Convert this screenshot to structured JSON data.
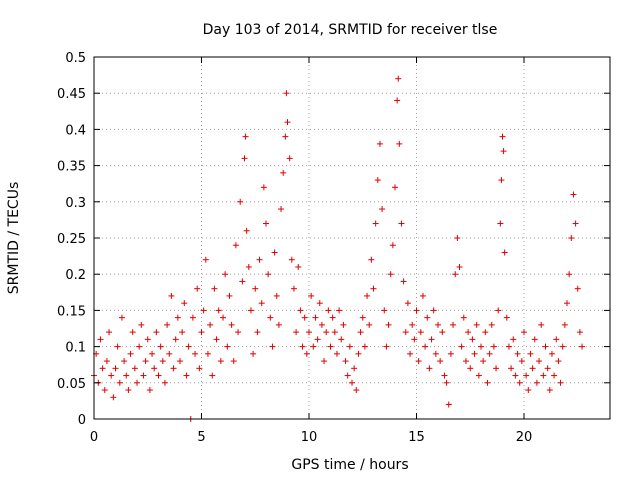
{
  "chart_data": {
    "type": "scatter",
    "title": "Day 103 of 2014, SRMTID for receiver tlse",
    "xlabel": "GPS time / hours",
    "ylabel": "SRMTID / TECUs",
    "xlim": [
      0,
      24
    ],
    "ylim": [
      0,
      0.5
    ],
    "x_ticks": [
      "0",
      "5",
      "10",
      "15",
      "20"
    ],
    "y_ticks": [
      "0",
      "0.05",
      "0.1",
      "0.15",
      "0.2",
      "0.25",
      "0.3",
      "0.35",
      "0.4",
      "0.45",
      "0.5"
    ],
    "grid": true,
    "marker": "+",
    "color": "#e00000",
    "series": [
      {
        "points": [
          [
            0.0,
            0.06
          ],
          [
            0.1,
            0.09
          ],
          [
            0.2,
            0.05
          ],
          [
            0.3,
            0.11
          ],
          [
            0.4,
            0.07
          ],
          [
            0.5,
            0.04
          ],
          [
            0.6,
            0.08
          ],
          [
            0.7,
            0.12
          ],
          [
            0.8,
            0.06
          ],
          [
            0.9,
            0.03
          ],
          [
            1.0,
            0.07
          ],
          [
            1.1,
            0.1
          ],
          [
            1.2,
            0.05
          ],
          [
            1.3,
            0.14
          ],
          [
            1.4,
            0.08
          ],
          [
            1.5,
            0.06
          ],
          [
            1.6,
            0.04
          ],
          [
            1.7,
            0.09
          ],
          [
            1.8,
            0.12
          ],
          [
            1.9,
            0.07
          ],
          [
            2.0,
            0.05
          ],
          [
            2.1,
            0.1
          ],
          [
            2.2,
            0.13
          ],
          [
            2.3,
            0.06
          ],
          [
            2.4,
            0.08
          ],
          [
            2.5,
            0.11
          ],
          [
            2.6,
            0.04
          ],
          [
            2.7,
            0.09
          ],
          [
            2.8,
            0.07
          ],
          [
            2.9,
            0.12
          ],
          [
            3.0,
            0.06
          ],
          [
            3.1,
            0.1
          ],
          [
            3.2,
            0.08
          ],
          [
            3.3,
            0.05
          ],
          [
            3.4,
            0.13
          ],
          [
            3.5,
            0.09
          ],
          [
            3.6,
            0.17
          ],
          [
            3.7,
            0.07
          ],
          [
            3.8,
            0.11
          ],
          [
            3.9,
            0.14
          ],
          [
            4.0,
            0.08
          ],
          [
            4.1,
            0.12
          ],
          [
            4.2,
            0.16
          ],
          [
            4.3,
            0.06
          ],
          [
            4.4,
            0.1
          ],
          [
            4.5,
            0.0
          ],
          [
            4.6,
            0.14
          ],
          [
            4.7,
            0.09
          ],
          [
            4.8,
            0.18
          ],
          [
            4.9,
            0.07
          ],
          [
            5.0,
            0.12
          ],
          [
            5.1,
            0.15
          ],
          [
            5.2,
            0.22
          ],
          [
            5.3,
            0.09
          ],
          [
            5.4,
            0.13
          ],
          [
            5.5,
            0.06
          ],
          [
            5.6,
            0.18
          ],
          [
            5.7,
            0.11
          ],
          [
            5.8,
            0.15
          ],
          [
            5.9,
            0.08
          ],
          [
            6.0,
            0.14
          ],
          [
            6.1,
            0.2
          ],
          [
            6.2,
            0.1
          ],
          [
            6.3,
            0.17
          ],
          [
            6.4,
            0.13
          ],
          [
            6.5,
            0.08
          ],
          [
            6.6,
            0.24
          ],
          [
            6.7,
            0.12
          ],
          [
            6.8,
            0.3
          ],
          [
            6.9,
            0.19
          ],
          [
            7.0,
            0.36
          ],
          [
            7.05,
            0.39
          ],
          [
            7.1,
            0.26
          ],
          [
            7.2,
            0.21
          ],
          [
            7.3,
            0.15
          ],
          [
            7.4,
            0.09
          ],
          [
            7.5,
            0.18
          ],
          [
            7.6,
            0.12
          ],
          [
            7.7,
            0.22
          ],
          [
            7.8,
            0.16
          ],
          [
            7.9,
            0.32
          ],
          [
            8.0,
            0.27
          ],
          [
            8.1,
            0.2
          ],
          [
            8.2,
            0.14
          ],
          [
            8.3,
            0.1
          ],
          [
            8.4,
            0.23
          ],
          [
            8.5,
            0.17
          ],
          [
            8.6,
            0.13
          ],
          [
            8.7,
            0.29
          ],
          [
            8.8,
            0.34
          ],
          [
            8.9,
            0.39
          ],
          [
            8.95,
            0.45
          ],
          [
            9.0,
            0.41
          ],
          [
            9.1,
            0.36
          ],
          [
            9.2,
            0.22
          ],
          [
            9.3,
            0.18
          ],
          [
            9.4,
            0.12
          ],
          [
            9.5,
            0.21
          ],
          [
            9.6,
            0.15
          ],
          [
            9.7,
            0.1
          ],
          [
            9.8,
            0.14
          ],
          [
            9.9,
            0.09
          ],
          [
            10.0,
            0.12
          ],
          [
            10.1,
            0.17
          ],
          [
            10.2,
            0.1
          ],
          [
            10.3,
            0.14
          ],
          [
            10.4,
            0.11
          ],
          [
            10.5,
            0.16
          ],
          [
            10.6,
            0.13
          ],
          [
            10.7,
            0.08
          ],
          [
            10.8,
            0.12
          ],
          [
            10.9,
            0.15
          ],
          [
            11.0,
            0.1
          ],
          [
            11.1,
            0.14
          ],
          [
            11.2,
            0.12
          ],
          [
            11.3,
            0.09
          ],
          [
            11.4,
            0.15
          ],
          [
            11.5,
            0.11
          ],
          [
            11.6,
            0.13
          ],
          [
            11.7,
            0.08
          ],
          [
            11.8,
            0.06
          ],
          [
            11.9,
            0.1
          ],
          [
            12.0,
            0.05
          ],
          [
            12.1,
            0.07
          ],
          [
            12.2,
            0.04
          ],
          [
            12.3,
            0.09
          ],
          [
            12.4,
            0.12
          ],
          [
            12.5,
            0.14
          ],
          [
            12.6,
            0.1
          ],
          [
            12.7,
            0.17
          ],
          [
            12.8,
            0.13
          ],
          [
            12.9,
            0.22
          ],
          [
            13.0,
            0.18
          ],
          [
            13.1,
            0.27
          ],
          [
            13.2,
            0.33
          ],
          [
            13.3,
            0.38
          ],
          [
            13.4,
            0.29
          ],
          [
            13.5,
            0.15
          ],
          [
            13.6,
            0.1
          ],
          [
            13.7,
            0.13
          ],
          [
            13.8,
            0.2
          ],
          [
            13.9,
            0.24
          ],
          [
            14.0,
            0.32
          ],
          [
            14.1,
            0.44
          ],
          [
            14.15,
            0.47
          ],
          [
            14.2,
            0.38
          ],
          [
            14.3,
            0.27
          ],
          [
            14.4,
            0.19
          ],
          [
            14.5,
            0.12
          ],
          [
            14.6,
            0.16
          ],
          [
            14.7,
            0.09
          ],
          [
            14.8,
            0.13
          ],
          [
            14.9,
            0.11
          ],
          [
            15.0,
            0.15
          ],
          [
            15.1,
            0.08
          ],
          [
            15.2,
            0.12
          ],
          [
            15.3,
            0.17
          ],
          [
            15.4,
            0.1
          ],
          [
            15.5,
            0.14
          ],
          [
            15.6,
            0.07
          ],
          [
            15.7,
            0.11
          ],
          [
            15.8,
            0.15
          ],
          [
            15.9,
            0.09
          ],
          [
            16.0,
            0.13
          ],
          [
            16.1,
            0.08
          ],
          [
            16.2,
            0.12
          ],
          [
            16.3,
            0.06
          ],
          [
            16.4,
            0.05
          ],
          [
            16.5,
            0.02
          ],
          [
            16.6,
            0.09
          ],
          [
            16.7,
            0.13
          ],
          [
            16.8,
            0.2
          ],
          [
            16.9,
            0.25
          ],
          [
            17.0,
            0.21
          ],
          [
            17.1,
            0.1
          ],
          [
            17.2,
            0.14
          ],
          [
            17.3,
            0.08
          ],
          [
            17.4,
            0.12
          ],
          [
            17.5,
            0.07
          ],
          [
            17.6,
            0.11
          ],
          [
            17.7,
            0.09
          ],
          [
            17.8,
            0.13
          ],
          [
            17.9,
            0.06
          ],
          [
            18.0,
            0.1
          ],
          [
            18.1,
            0.08
          ],
          [
            18.2,
            0.12
          ],
          [
            18.3,
            0.05
          ],
          [
            18.4,
            0.09
          ],
          [
            18.5,
            0.13
          ],
          [
            18.6,
            0.1
          ],
          [
            18.7,
            0.07
          ],
          [
            18.8,
            0.15
          ],
          [
            18.9,
            0.27
          ],
          [
            18.95,
            0.33
          ],
          [
            19.0,
            0.39
          ],
          [
            19.05,
            0.37
          ],
          [
            19.1,
            0.23
          ],
          [
            19.2,
            0.14
          ],
          [
            19.3,
            0.1
          ],
          [
            19.4,
            0.07
          ],
          [
            19.5,
            0.11
          ],
          [
            19.6,
            0.06
          ],
          [
            19.7,
            0.09
          ],
          [
            19.8,
            0.05
          ],
          [
            19.9,
            0.08
          ],
          [
            20.0,
            0.12
          ],
          [
            20.1,
            0.06
          ],
          [
            20.2,
            0.04
          ],
          [
            20.3,
            0.09
          ],
          [
            20.4,
            0.07
          ],
          [
            20.5,
            0.11
          ],
          [
            20.6,
            0.05
          ],
          [
            20.7,
            0.08
          ],
          [
            20.8,
            0.13
          ],
          [
            20.9,
            0.06
          ],
          [
            21.0,
            0.1
          ],
          [
            21.1,
            0.07
          ],
          [
            21.2,
            0.04
          ],
          [
            21.3,
            0.09
          ],
          [
            21.4,
            0.06
          ],
          [
            21.5,
            0.11
          ],
          [
            21.6,
            0.08
          ],
          [
            21.7,
            0.05
          ],
          [
            21.8,
            0.1
          ],
          [
            21.9,
            0.13
          ],
          [
            22.0,
            0.16
          ],
          [
            22.1,
            0.2
          ],
          [
            22.2,
            0.25
          ],
          [
            22.3,
            0.31
          ],
          [
            22.4,
            0.27
          ],
          [
            22.5,
            0.18
          ],
          [
            22.6,
            0.12
          ],
          [
            22.7,
            0.1
          ]
        ]
      }
    ]
  }
}
